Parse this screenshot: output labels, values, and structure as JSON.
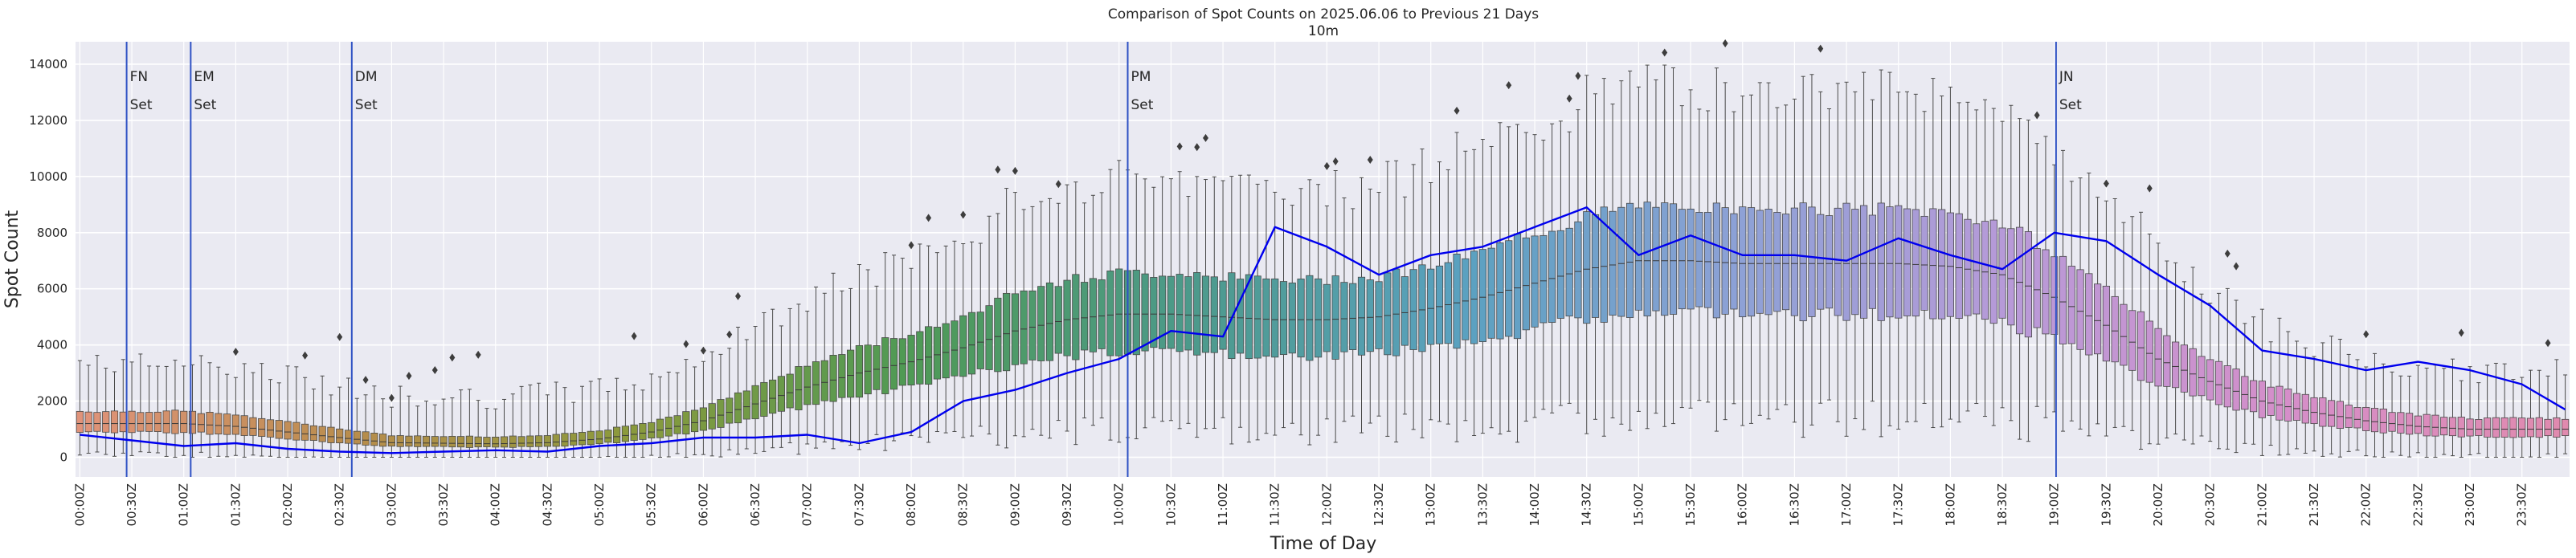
{
  "chart_data": {
    "type": "boxplot+line",
    "title": "Comparison of Spot Counts on 2025.06.06 to Previous 21 Days",
    "subtitle": "10m",
    "xlabel": "Time of Day",
    "ylabel": "Spot Count",
    "ylim": [
      -700,
      14800
    ],
    "yticks": [
      0,
      2000,
      4000,
      6000,
      8000,
      10000,
      12000,
      14000
    ],
    "grid": true,
    "interval_minutes": 5,
    "xtick_labels": [
      "00:00Z",
      "00:30Z",
      "01:00Z",
      "01:30Z",
      "02:00Z",
      "02:30Z",
      "03:00Z",
      "03:30Z",
      "04:00Z",
      "04:30Z",
      "05:00Z",
      "05:30Z",
      "06:00Z",
      "06:30Z",
      "07:00Z",
      "07:30Z",
      "08:00Z",
      "08:30Z",
      "09:00Z",
      "09:30Z",
      "10:00Z",
      "10:30Z",
      "11:00Z",
      "11:30Z",
      "12:00Z",
      "12:30Z",
      "13:00Z",
      "13:30Z",
      "14:00Z",
      "14:30Z",
      "15:00Z",
      "15:30Z",
      "16:00Z",
      "16:30Z",
      "17:00Z",
      "17:30Z",
      "18:00Z",
      "18:30Z",
      "19:00Z",
      "19:30Z",
      "20:00Z",
      "20:30Z",
      "21:00Z",
      "21:30Z",
      "22:00Z",
      "22:30Z",
      "23:00Z",
      "23:30Z"
    ],
    "events": [
      {
        "name": "FN",
        "label": "Set",
        "time": "00:27Z"
      },
      {
        "name": "EM",
        "label": "Set",
        "time": "01:04Z"
      },
      {
        "name": "DM",
        "label": "Set",
        "time": "02:37Z"
      },
      {
        "name": "PM",
        "label": "Set",
        "time": "10:05Z"
      },
      {
        "name": "JN",
        "label": "Set",
        "time": "19:01Z"
      }
    ],
    "box_median_keypoints": {
      "hours": [
        0,
        1,
        1.5,
        2,
        2.5,
        3,
        3.5,
        4,
        4.5,
        5,
        5.5,
        6,
        6.5,
        7,
        7.5,
        8,
        8.5,
        9,
        9.5,
        10,
        10.5,
        11,
        11.5,
        12,
        12.5,
        13,
        13.5,
        14,
        14.5,
        15,
        15.5,
        16,
        16.5,
        17,
        17.5,
        18,
        18.5,
        19,
        19.5,
        20,
        20.5,
        21,
        21.5,
        22,
        22.5,
        23,
        23.5,
        24
      ],
      "values": [
        1200,
        1200,
        1100,
        900,
        700,
        520,
        500,
        480,
        520,
        650,
        900,
        1300,
        1900,
        2500,
        3000,
        3400,
        3900,
        4500,
        4900,
        5100,
        5100,
        5000,
        4900,
        4900,
        5000,
        5300,
        5700,
        6200,
        6700,
        7000,
        7000,
        6900,
        6900,
        6900,
        6900,
        6800,
        6500,
        5700,
        4700,
        3500,
        2700,
        2000,
        1600,
        1300,
        1100,
        1000,
        1000,
        1000
      ]
    },
    "series": [
      {
        "name": "2025.06.06",
        "color": "#0000ee",
        "times": [
          "00:00Z",
          "00:30Z",
          "01:00Z",
          "01:30Z",
          "02:00Z",
          "02:30Z",
          "03:00Z",
          "03:30Z",
          "04:00Z",
          "04:30Z",
          "05:00Z",
          "05:30Z",
          "06:00Z",
          "06:30Z",
          "07:00Z",
          "07:30Z",
          "08:00Z",
          "08:30Z",
          "09:00Z",
          "09:30Z",
          "10:00Z",
          "10:30Z",
          "11:00Z",
          "11:30Z",
          "12:00Z",
          "12:30Z",
          "13:00Z",
          "13:30Z",
          "14:00Z",
          "14:30Z",
          "15:00Z",
          "15:30Z",
          "16:00Z",
          "16:30Z",
          "17:00Z",
          "17:30Z",
          "18:00Z",
          "18:30Z",
          "19:00Z",
          "19:30Z",
          "20:00Z",
          "20:30Z",
          "21:00Z",
          "21:30Z",
          "22:00Z",
          "22:30Z",
          "23:00Z",
          "23:30Z",
          "23:55Z"
        ],
        "values": [
          800,
          600,
          400,
          500,
          300,
          200,
          150,
          200,
          250,
          200,
          400,
          500,
          700,
          700,
          800,
          500,
          900,
          2000,
          2400,
          3000,
          3500,
          4500,
          4300,
          8200,
          7500,
          6500,
          7200,
          7500,
          8200,
          8900,
          7200,
          7900,
          7200,
          7200,
          7000,
          7800,
          7200,
          6700,
          8000,
          7700,
          6500,
          5400,
          3800,
          3500,
          3100,
          3400,
          3100,
          2600,
          1700
        ]
      }
    ],
    "box_fill_gradient": [
      "#e0937a",
      "#b88d4c",
      "#8a9a3c",
      "#4f9a55",
      "#4c9a8a",
      "#5aa1c0",
      "#8da1d6",
      "#b89ad8",
      "#d58ec9",
      "#e08aae"
    ]
  }
}
